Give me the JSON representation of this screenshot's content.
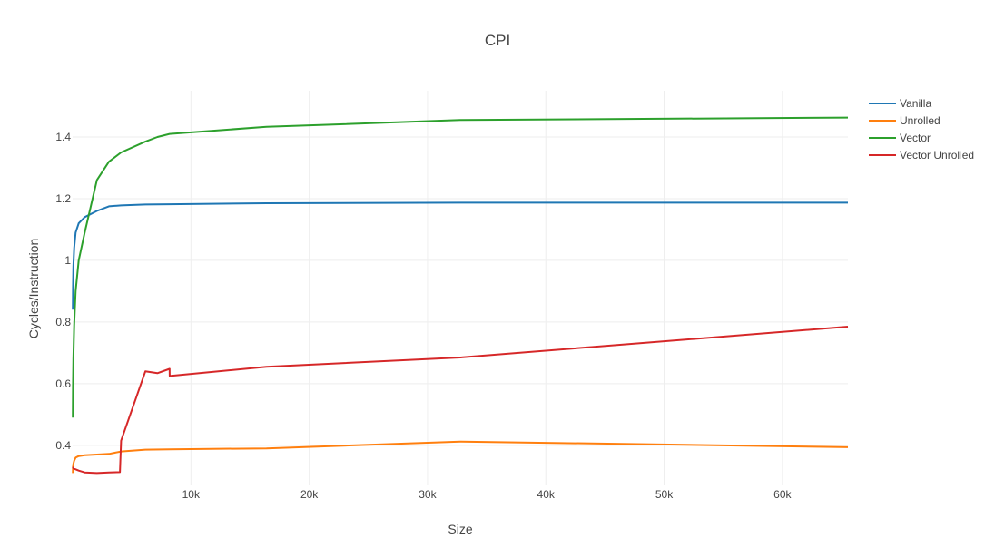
{
  "chart_data": {
    "type": "line",
    "title": "CPI",
    "xlabel": "Size",
    "ylabel": "Cycles/Instruction",
    "xlim": [
      0,
      65536
    ],
    "ylim": [
      0.27,
      1.55
    ],
    "x_ticks": [
      10000,
      20000,
      30000,
      40000,
      50000,
      60000
    ],
    "x_tick_labels": [
      "10k",
      "20k",
      "30k",
      "40k",
      "50k",
      "60k"
    ],
    "y_ticks": [
      0.4,
      0.6,
      0.8,
      1.0,
      1.2,
      1.4
    ],
    "y_tick_labels": [
      "0.4",
      "0.6",
      "0.8",
      "1",
      "1.2",
      "1.4"
    ],
    "grid": true,
    "legend_position": "right",
    "series": [
      {
        "name": "Vanilla",
        "color": "#1f77b4",
        "x": [
          16,
          32,
          64,
          128,
          256,
          512,
          1024,
          2048,
          3072,
          4096,
          6144,
          8192,
          16384,
          32768,
          65536
        ],
        "y": [
          0.84,
          0.91,
          0.98,
          1.04,
          1.09,
          1.12,
          1.14,
          1.16,
          1.175,
          1.178,
          1.181,
          1.182,
          1.185,
          1.187,
          1.187
        ]
      },
      {
        "name": "Unrolled",
        "color": "#ff7f0e",
        "x": [
          16,
          32,
          64,
          128,
          256,
          512,
          1024,
          2048,
          3072,
          4096,
          6144,
          8192,
          16384,
          32768,
          65536
        ],
        "y": [
          0.31,
          0.33,
          0.34,
          0.35,
          0.36,
          0.365,
          0.368,
          0.37,
          0.372,
          0.38,
          0.386,
          0.387,
          0.39,
          0.412,
          0.394
        ]
      },
      {
        "name": "Vector",
        "color": "#2ca02c",
        "x": [
          16,
          32,
          64,
          128,
          256,
          512,
          1024,
          2048,
          3072,
          4096,
          6144,
          7168,
          8192,
          16384,
          32768,
          65536
        ],
        "y": [
          0.49,
          0.59,
          0.68,
          0.79,
          0.9,
          1.0,
          1.09,
          1.26,
          1.32,
          1.35,
          1.385,
          1.4,
          1.41,
          1.433,
          1.455,
          1.463
        ]
      },
      {
        "name": "Vector Unrolled",
        "color": "#d62728",
        "x": [
          16,
          64,
          256,
          512,
          1024,
          2048,
          3072,
          4000,
          4096,
          6144,
          7168,
          8192,
          8200,
          16384,
          32768,
          65536
        ],
        "y": [
          0.33,
          0.325,
          0.322,
          0.318,
          0.312,
          0.31,
          0.312,
          0.313,
          0.415,
          0.64,
          0.634,
          0.648,
          0.625,
          0.655,
          0.685,
          0.785
        ]
      }
    ]
  }
}
